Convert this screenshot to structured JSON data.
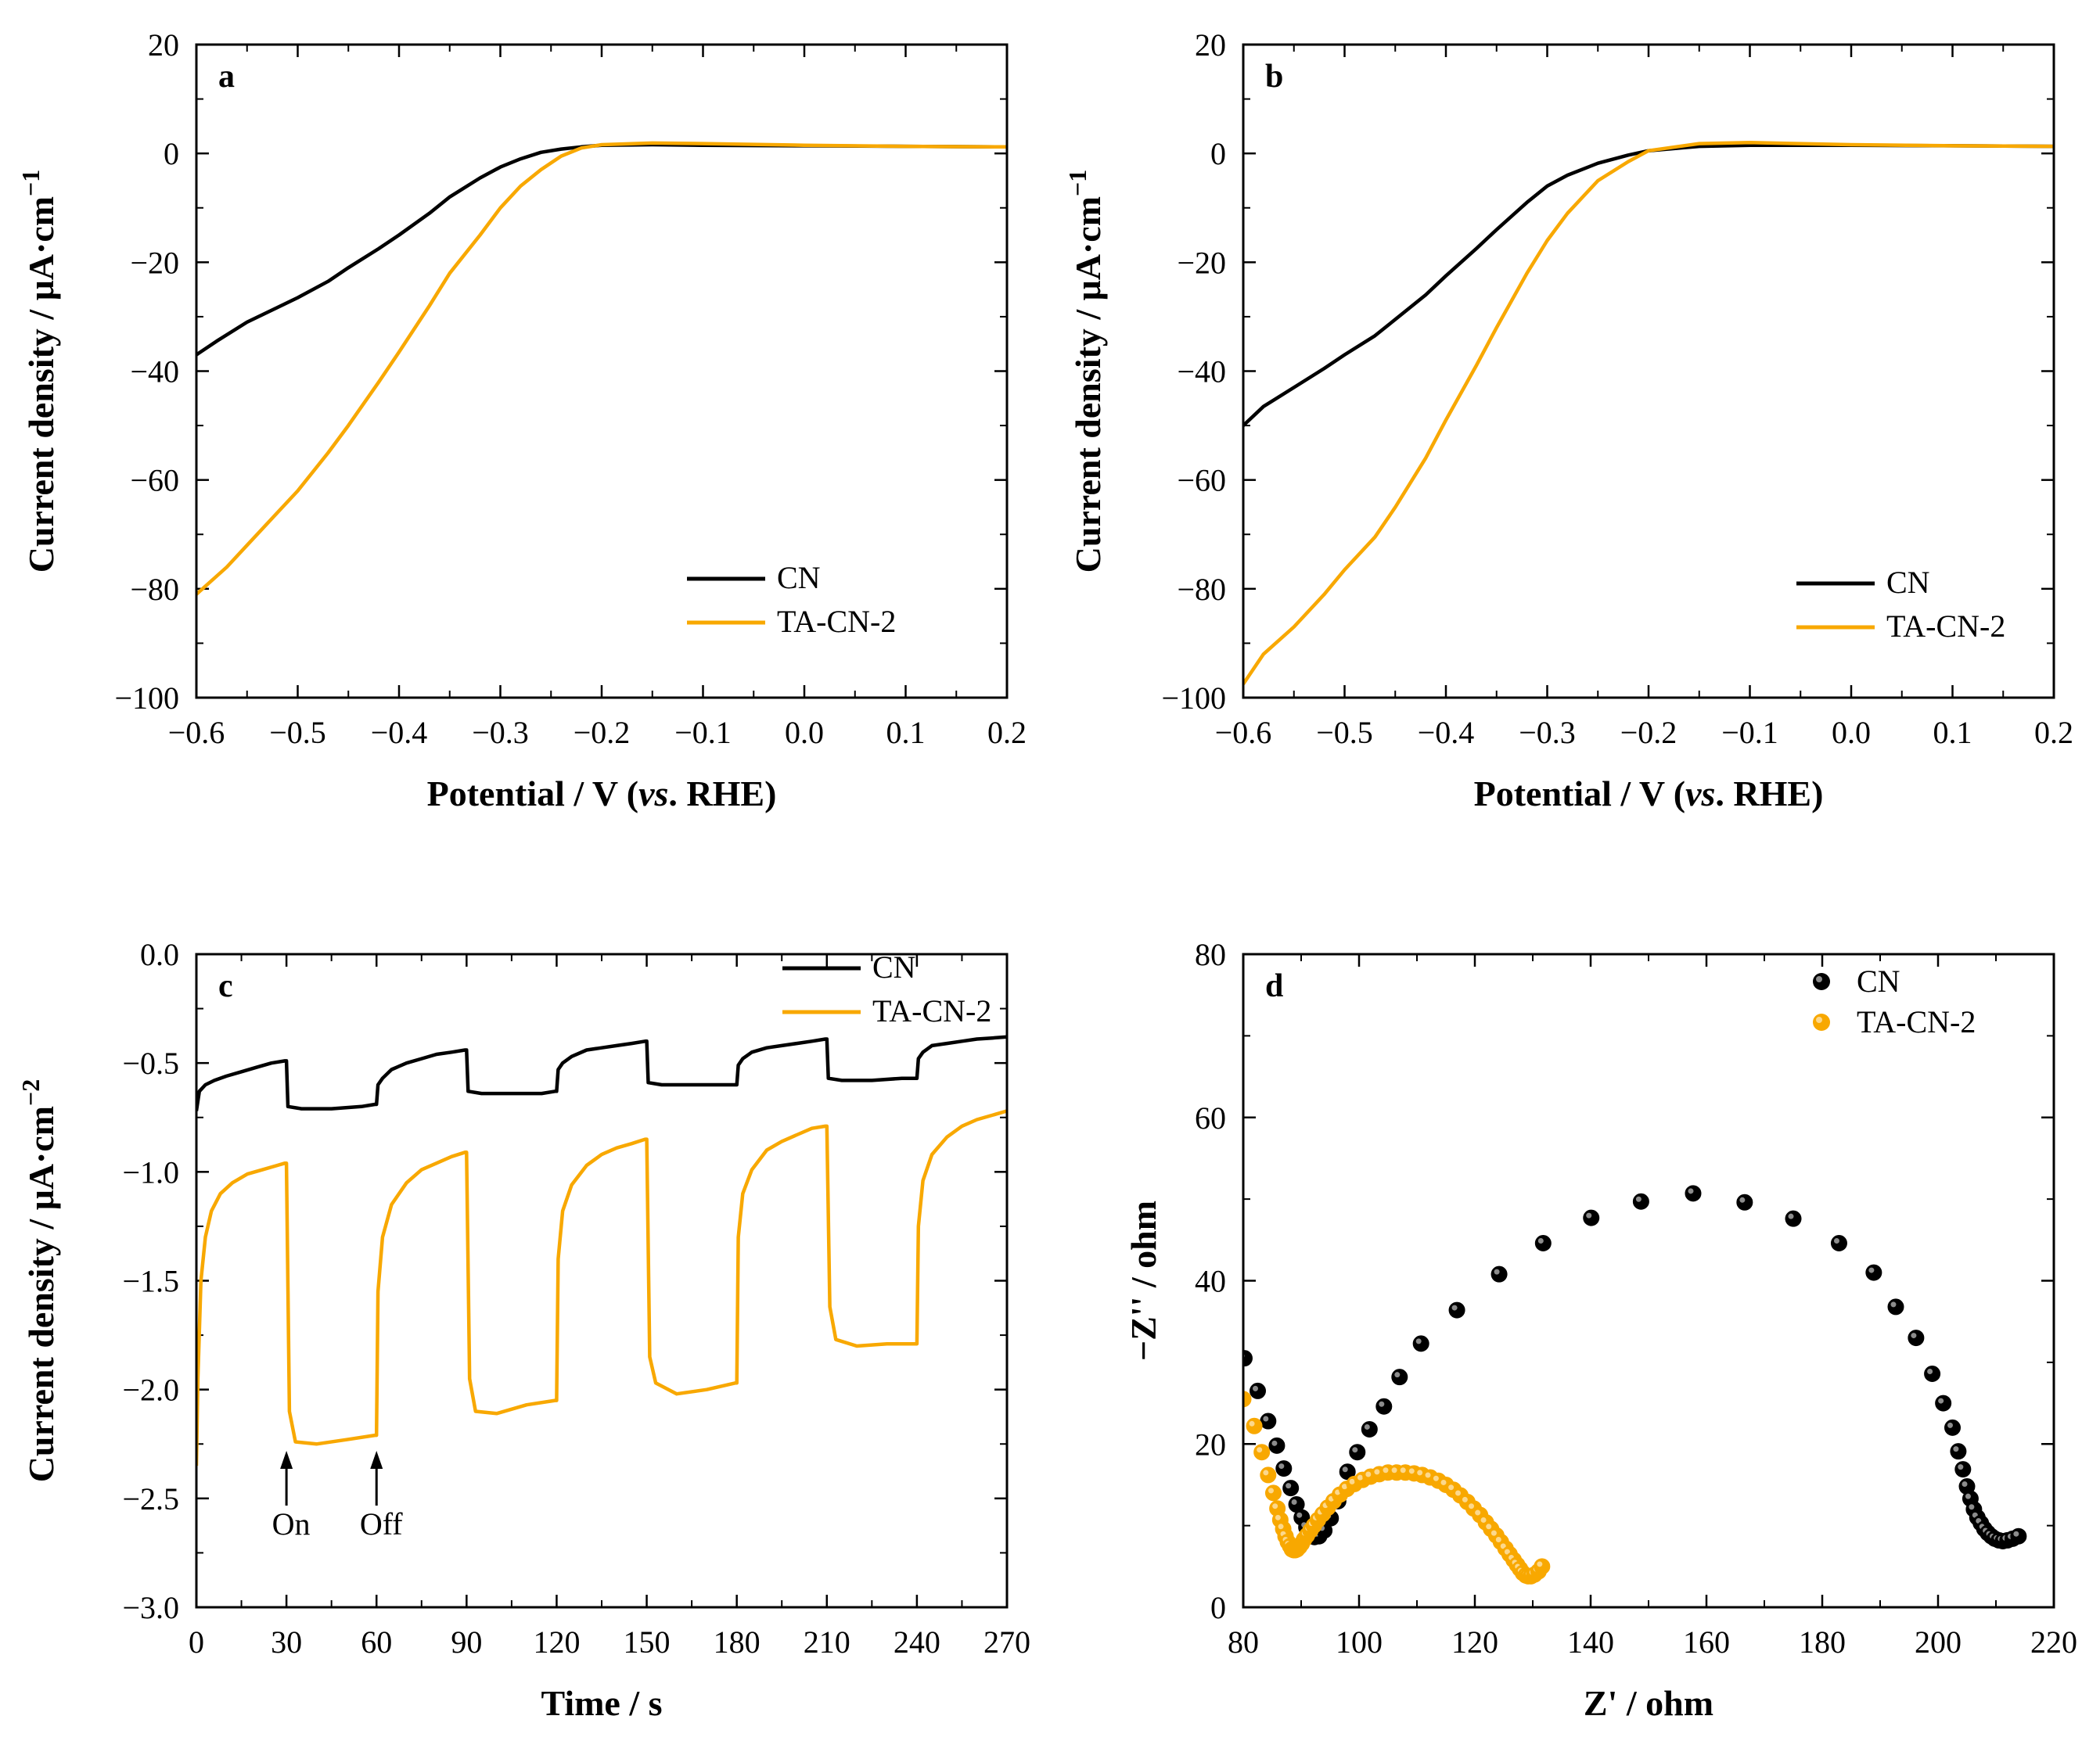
{
  "colors": {
    "cn": "#000000",
    "ta": "#F8A800"
  },
  "chart_data": [
    {
      "id": "a",
      "panel_label": "a",
      "type": "line",
      "xlabel_main": "Potential / V (",
      "xlabel_italic": "vs",
      "xlabel_end": ". RHE)",
      "ylabel": "Current density / μA·cm",
      "ylabel_sup": "−1",
      "xlim": [
        -0.6,
        0.2
      ],
      "ylim": [
        -100,
        20
      ],
      "xticks": [
        -0.6,
        -0.5,
        -0.4,
        -0.3,
        -0.2,
        -0.1,
        0.0,
        0.1,
        0.2
      ],
      "xtick_labels": [
        "−0.6",
        "−0.5",
        "−0.4",
        "−0.3",
        "−0.2",
        "−0.1",
        "0.0",
        "0.1",
        "0.2"
      ],
      "yticks": [
        -100,
        -80,
        -60,
        -40,
        -20,
        0,
        20
      ],
      "ytick_labels": [
        "−100",
        "−80",
        "−60",
        "−40",
        "−20",
        "0",
        "20"
      ],
      "legend": [
        "CN",
        "TA-CN-2"
      ],
      "series": [
        {
          "name": "CN",
          "color_key": "cn",
          "x": [
            -0.6,
            -0.58,
            -0.55,
            -0.52,
            -0.5,
            -0.47,
            -0.45,
            -0.42,
            -0.4,
            -0.37,
            -0.35,
            -0.32,
            -0.3,
            -0.28,
            -0.26,
            -0.24,
            -0.22,
            -0.2,
            -0.15,
            -0.1,
            0.0,
            0.1,
            0.2
          ],
          "y": [
            -37,
            -34.5,
            -31,
            -28.3,
            -26.5,
            -23.5,
            -21,
            -17.5,
            -15,
            -11,
            -8,
            -4.5,
            -2.5,
            -1,
            0.2,
            0.8,
            1.2,
            1.5,
            1.6,
            1.5,
            1.4,
            1.3,
            1.2
          ]
        },
        {
          "name": "TA-CN-2",
          "color_key": "ta",
          "x": [
            -0.6,
            -0.57,
            -0.55,
            -0.52,
            -0.5,
            -0.47,
            -0.45,
            -0.42,
            -0.4,
            -0.37,
            -0.35,
            -0.32,
            -0.3,
            -0.28,
            -0.26,
            -0.24,
            -0.22,
            -0.2,
            -0.15,
            -0.1,
            0.0,
            0.1,
            0.2
          ],
          "y": [
            -81,
            -76,
            -72,
            -66,
            -62,
            -55,
            -50,
            -42,
            -36.5,
            -28,
            -22,
            -15,
            -10,
            -6,
            -3,
            -0.5,
            1,
            1.6,
            1.9,
            1.8,
            1.5,
            1.3,
            1.2
          ]
        }
      ]
    },
    {
      "id": "b",
      "panel_label": "b",
      "type": "line",
      "xlabel_main": "Potential / V (",
      "xlabel_italic": "vs",
      "xlabel_end": ". RHE)",
      "ylabel": "Current density / μA·cm",
      "ylabel_sup": "−1",
      "xlim": [
        -0.6,
        0.2
      ],
      "ylim": [
        -100,
        20
      ],
      "xticks": [
        -0.6,
        -0.5,
        -0.4,
        -0.3,
        -0.2,
        -0.1,
        0.0,
        0.1,
        0.2
      ],
      "xtick_labels": [
        "−0.6",
        "−0.5",
        "−0.4",
        "−0.3",
        "−0.2",
        "−0.1",
        "0.0",
        "0.1",
        "0.2"
      ],
      "yticks": [
        -100,
        -80,
        -60,
        -40,
        -20,
        0,
        20
      ],
      "ytick_labels": [
        "−100",
        "−80",
        "−60",
        "−40",
        "−20",
        "0",
        "20"
      ],
      "legend": [
        "CN",
        "TA-CN-2"
      ],
      "series": [
        {
          "name": "CN",
          "color_key": "cn",
          "x": [
            -0.6,
            -0.58,
            -0.55,
            -0.52,
            -0.5,
            -0.47,
            -0.45,
            -0.42,
            -0.4,
            -0.37,
            -0.35,
            -0.32,
            -0.3,
            -0.28,
            -0.25,
            -0.22,
            -0.2,
            -0.15,
            -0.1,
            0.0,
            0.1,
            0.2
          ],
          "y": [
            -50,
            -46.5,
            -43,
            -39.5,
            -37,
            -33.5,
            -30.5,
            -26,
            -22.5,
            -17.5,
            -14,
            -9,
            -6,
            -4,
            -1.8,
            -0.3,
            0.5,
            1.3,
            1.5,
            1.5,
            1.4,
            1.3
          ]
        },
        {
          "name": "TA-CN-2",
          "color_key": "ta",
          "x": [
            -0.6,
            -0.58,
            -0.55,
            -0.52,
            -0.5,
            -0.47,
            -0.45,
            -0.42,
            -0.4,
            -0.37,
            -0.35,
            -0.32,
            -0.3,
            -0.28,
            -0.25,
            -0.22,
            -0.2,
            -0.15,
            -0.1,
            0.0,
            0.1,
            0.2
          ],
          "y": [
            -97.5,
            -92,
            -87,
            -81,
            -76.5,
            -70.5,
            -65,
            -56,
            -49,
            -39,
            -32,
            -22,
            -16,
            -11,
            -5,
            -1.5,
            0.5,
            1.8,
            2.0,
            1.6,
            1.4,
            1.3
          ]
        }
      ]
    },
    {
      "id": "c",
      "panel_label": "c",
      "type": "line",
      "xlabel": "Time / s",
      "ylabel": "Current density / μA·cm",
      "ylabel_sup": "−2",
      "xlim": [
        0,
        270
      ],
      "ylim": [
        -3.0,
        0.0
      ],
      "xticks": [
        0,
        30,
        60,
        90,
        120,
        150,
        180,
        210,
        240,
        270
      ],
      "xtick_labels": [
        "0",
        "30",
        "60",
        "90",
        "120",
        "150",
        "180",
        "210",
        "240",
        "270"
      ],
      "yticks": [
        -3.0,
        -2.5,
        -2.0,
        -1.5,
        -1.0,
        -0.5,
        0.0
      ],
      "ytick_labels": [
        "−3.0",
        "−2.5",
        "−2.0",
        "−1.5",
        "−1.0",
        "−0.5",
        "0.0"
      ],
      "legend": [
        "CN",
        "TA-CN-2"
      ],
      "annotations": [
        {
          "text": "On",
          "x": 30
        },
        {
          "text": "Off",
          "x": 60
        }
      ],
      "series": [
        {
          "name": "CN",
          "color_key": "cn",
          "x": [
            0,
            1,
            3,
            6,
            10,
            15,
            20,
            25,
            29.5,
            30,
            30.5,
            35,
            45,
            55,
            59.5,
            60,
            60.5,
            62,
            65,
            70,
            75,
            80,
            85,
            89.5,
            90,
            90.5,
            95,
            105,
            115,
            119.5,
            120,
            120.5,
            122,
            125,
            130,
            135,
            140,
            145,
            149.5,
            150,
            150.5,
            155,
            165,
            175,
            179.5,
            180,
            180.5,
            182,
            185,
            190,
            195,
            200,
            205,
            209.5,
            210,
            210.5,
            215,
            225,
            235,
            239.5,
            240,
            240.5,
            242,
            245,
            250,
            255,
            260,
            265,
            270
          ],
          "y": [
            -0.72,
            -0.63,
            -0.6,
            -0.58,
            -0.56,
            -0.54,
            -0.52,
            -0.5,
            -0.49,
            -0.49,
            -0.7,
            -0.71,
            -0.71,
            -0.7,
            -0.69,
            -0.69,
            -0.6,
            -0.57,
            -0.53,
            -0.5,
            -0.48,
            -0.46,
            -0.45,
            -0.44,
            -0.44,
            -0.63,
            -0.64,
            -0.64,
            -0.64,
            -0.63,
            -0.63,
            -0.53,
            -0.5,
            -0.47,
            -0.44,
            -0.43,
            -0.42,
            -0.41,
            -0.4,
            -0.4,
            -0.59,
            -0.6,
            -0.6,
            -0.6,
            -0.6,
            -0.6,
            -0.51,
            -0.48,
            -0.45,
            -0.43,
            -0.42,
            -0.41,
            -0.4,
            -0.39,
            -0.39,
            -0.57,
            -0.58,
            -0.58,
            -0.57,
            -0.57,
            -0.57,
            -0.48,
            -0.45,
            -0.42,
            -0.41,
            -0.4,
            -0.39,
            -0.385,
            -0.38
          ]
        },
        {
          "name": "TA-CN-2",
          "color_key": "ta",
          "x": [
            0,
            0.5,
            1.5,
            3,
            5,
            8,
            12,
            17,
            22,
            27,
            29.5,
            30,
            31,
            33,
            40,
            50,
            59.5,
            60,
            60.5,
            62,
            65,
            70,
            75,
            80,
            85,
            89.5,
            90,
            91,
            93,
            100,
            110,
            119.5,
            120,
            120.5,
            122,
            125,
            130,
            135,
            140,
            145,
            149.5,
            150,
            151,
            153,
            160,
            170,
            179.5,
            180,
            180.5,
            182,
            185,
            190,
            195,
            200,
            205,
            209.5,
            210,
            211,
            213,
            220,
            230,
            239.5,
            240,
            240.5,
            242,
            245,
            250,
            255,
            260,
            265,
            270
          ],
          "y": [
            -2.35,
            -1.95,
            -1.5,
            -1.3,
            -1.18,
            -1.1,
            -1.05,
            -1.01,
            -0.99,
            -0.97,
            -0.96,
            -0.96,
            -2.1,
            -2.24,
            -2.25,
            -2.23,
            -2.21,
            -2.21,
            -1.55,
            -1.3,
            -1.15,
            -1.05,
            -0.99,
            -0.96,
            -0.93,
            -0.91,
            -0.91,
            -1.95,
            -2.1,
            -2.11,
            -2.07,
            -2.05,
            -2.05,
            -1.4,
            -1.18,
            -1.06,
            -0.97,
            -0.92,
            -0.89,
            -0.87,
            -0.85,
            -0.85,
            -1.85,
            -1.97,
            -2.02,
            -2.0,
            -1.97,
            -1.97,
            -1.3,
            -1.1,
            -0.99,
            -0.9,
            -0.86,
            -0.83,
            -0.8,
            -0.79,
            -0.79,
            -1.62,
            -1.77,
            -1.8,
            -1.79,
            -1.79,
            -1.79,
            -1.25,
            -1.04,
            -0.92,
            -0.84,
            -0.79,
            -0.76,
            -0.74,
            -0.72
          ]
        }
      ]
    },
    {
      "id": "d",
      "panel_label": "d",
      "type": "scatter",
      "xlabel": "Z' / ohm",
      "ylabel": "−Z'' / ohm",
      "xlim": [
        80,
        220
      ],
      "ylim": [
        0,
        80
      ],
      "xticks": [
        80,
        100,
        120,
        140,
        160,
        180,
        200,
        220
      ],
      "xtick_labels": [
        "80",
        "100",
        "120",
        "140",
        "160",
        "180",
        "200",
        "220"
      ],
      "yticks": [
        0,
        20,
        40,
        60,
        80
      ],
      "ytick_labels": [
        "0",
        "20",
        "40",
        "60",
        "80"
      ],
      "legend": [
        "CN",
        "TA-CN-2"
      ],
      "series": [
        {
          "name": "CN",
          "color_key": "cn",
          "x": [
            80.2,
            82.5,
            84.3,
            85.8,
            87.0,
            88.2,
            89.2,
            90.1,
            90.9,
            91.6,
            92.3,
            93.1,
            94.0,
            95.1,
            96.4,
            98.0,
            99.7,
            101.8,
            104.3,
            107.0,
            110.7,
            116.9,
            124.2,
            131.8,
            140.1,
            148.7,
            157.7,
            166.6,
            175.0,
            182.9,
            188.9,
            192.7,
            196.2,
            199.0,
            200.9,
            202.5,
            203.5,
            204.3,
            205.0,
            205.6,
            206.2,
            206.8,
            207.4,
            208.0,
            208.6,
            209.2,
            209.8,
            210.5,
            211.2,
            212.0,
            212.9,
            213.9
          ],
          "y": [
            30.5,
            26.5,
            22.8,
            19.8,
            17.0,
            14.6,
            12.6,
            11.0,
            9.8,
            9.0,
            8.6,
            8.7,
            9.4,
            10.9,
            13.0,
            16.6,
            19.0,
            21.8,
            24.6,
            28.2,
            32.3,
            36.4,
            40.8,
            44.6,
            47.7,
            49.7,
            50.7,
            49.6,
            47.6,
            44.6,
            41.0,
            36.8,
            33.0,
            28.6,
            25.0,
            22.0,
            19.1,
            16.9,
            14.8,
            13.3,
            12.0,
            11.0,
            10.3,
            9.6,
            9.1,
            8.7,
            8.4,
            8.2,
            8.1,
            8.2,
            8.4,
            8.7
          ]
        },
        {
          "name": "TA-CN-2",
          "color_key": "ta",
          "x": [
            80.0,
            81.9,
            83.2,
            84.3,
            85.2,
            85.9,
            86.4,
            86.9,
            87.3,
            87.7,
            88.1,
            88.4,
            88.7,
            89.0,
            89.3,
            89.7,
            90.1,
            90.5,
            91.0,
            91.6,
            92.2,
            92.9,
            93.7,
            94.6,
            95.6,
            96.7,
            97.9,
            99.2,
            100.6,
            102.0,
            103.5,
            105.0,
            106.5,
            108.0,
            109.5,
            110.9,
            112.3,
            113.7,
            115.0,
            116.3,
            117.5,
            118.7,
            119.8,
            120.9,
            121.9,
            122.8,
            123.7,
            124.5,
            125.3,
            126.0,
            126.7,
            127.3,
            127.8,
            128.3,
            128.8,
            129.2,
            129.7,
            130.3,
            131.0,
            131.6
          ],
          "y": [
            25.5,
            22.2,
            19.0,
            16.2,
            14.0,
            12.1,
            10.7,
            9.6,
            8.7,
            8.0,
            7.5,
            7.1,
            7.0,
            7.0,
            7.1,
            7.4,
            7.8,
            8.3,
            8.8,
            9.4,
            10.0,
            10.7,
            11.4,
            12.2,
            13.0,
            13.8,
            14.5,
            15.1,
            15.6,
            16.0,
            16.3,
            16.5,
            16.5,
            16.5,
            16.4,
            16.2,
            15.9,
            15.5,
            15.0,
            14.4,
            13.7,
            12.9,
            12.1,
            11.3,
            10.4,
            9.6,
            8.8,
            8.0,
            7.2,
            6.5,
            5.8,
            5.2,
            4.7,
            4.2,
            3.9,
            3.8,
            3.8,
            4.0,
            4.4,
            5.0
          ]
        }
      ]
    }
  ]
}
